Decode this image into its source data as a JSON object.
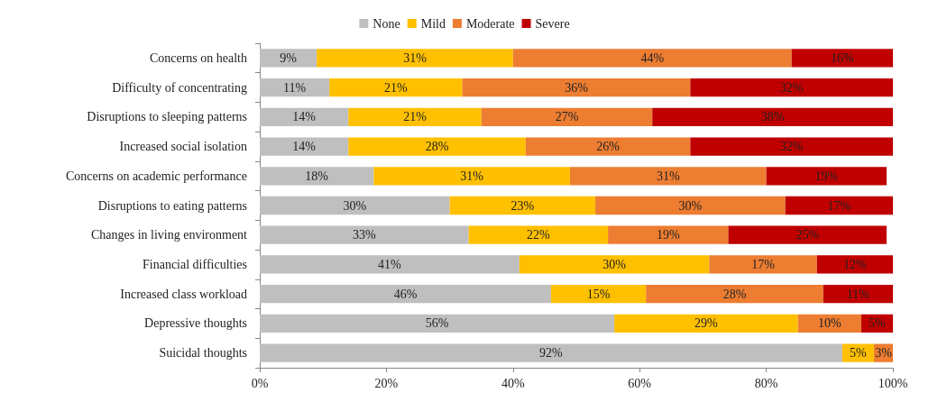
{
  "chart_data": {
    "type": "bar",
    "orientation": "horizontal",
    "stacked": true,
    "legend": "top",
    "grid": false,
    "categories": [
      "Concerns on health",
      "Difficulty of concentrating",
      "Disruptions to sleeping patterns",
      "Increased social isolation",
      "Concerns on academic performance",
      "Disruptions to eating patterns",
      "Changes in living environment",
      "Financial difficulties",
      "Increased class workload",
      "Depressive thoughts",
      "Suicidal thoughts"
    ],
    "xlim": [
      0,
      100
    ],
    "xticks": [
      {
        "value": 0,
        "label": "0%"
      },
      {
        "value": 20,
        "label": "20%"
      },
      {
        "value": 40,
        "label": "40%"
      },
      {
        "value": 60,
        "label": "60%"
      },
      {
        "value": 80,
        "label": "80%"
      },
      {
        "value": 100,
        "label": "100%"
      }
    ],
    "series": [
      {
        "name": "None",
        "color": "#bfbfbf",
        "values": [
          9,
          11,
          14,
          14,
          18,
          30,
          33,
          41,
          46,
          56,
          92
        ],
        "value_labels": [
          "9%",
          "11%",
          "14%",
          "14%",
          "18%",
          "30%",
          "33%",
          "41%",
          "46%",
          "56%",
          "92%"
        ]
      },
      {
        "name": "Mild",
        "color": "#ffc000",
        "values": [
          31,
          21,
          21,
          28,
          31,
          23,
          22,
          30,
          15,
          29,
          5
        ],
        "value_labels": [
          "31%",
          "21%",
          "21%",
          "28%",
          "31%",
          "23%",
          "22%",
          "30%",
          "15%",
          "29%",
          "5%"
        ]
      },
      {
        "name": "Moderate",
        "color": "#ed7d31",
        "values": [
          44,
          36,
          27,
          26,
          31,
          30,
          19,
          17,
          28,
          10,
          3
        ],
        "value_labels": [
          "44%",
          "36%",
          "27%",
          "26%",
          "31%",
          "30%",
          "19%",
          "17%",
          "28%",
          "10%",
          "3%"
        ]
      },
      {
        "name": "Severe",
        "color": "#c00000",
        "values": [
          16,
          32,
          38,
          32,
          19,
          17,
          25,
          12,
          11,
          5,
          0
        ],
        "value_labels": [
          "16%",
          "32%",
          "38%",
          "32%",
          "19%",
          "17%",
          "25%",
          "12%",
          "11%",
          "5%",
          null
        ]
      }
    ]
  }
}
